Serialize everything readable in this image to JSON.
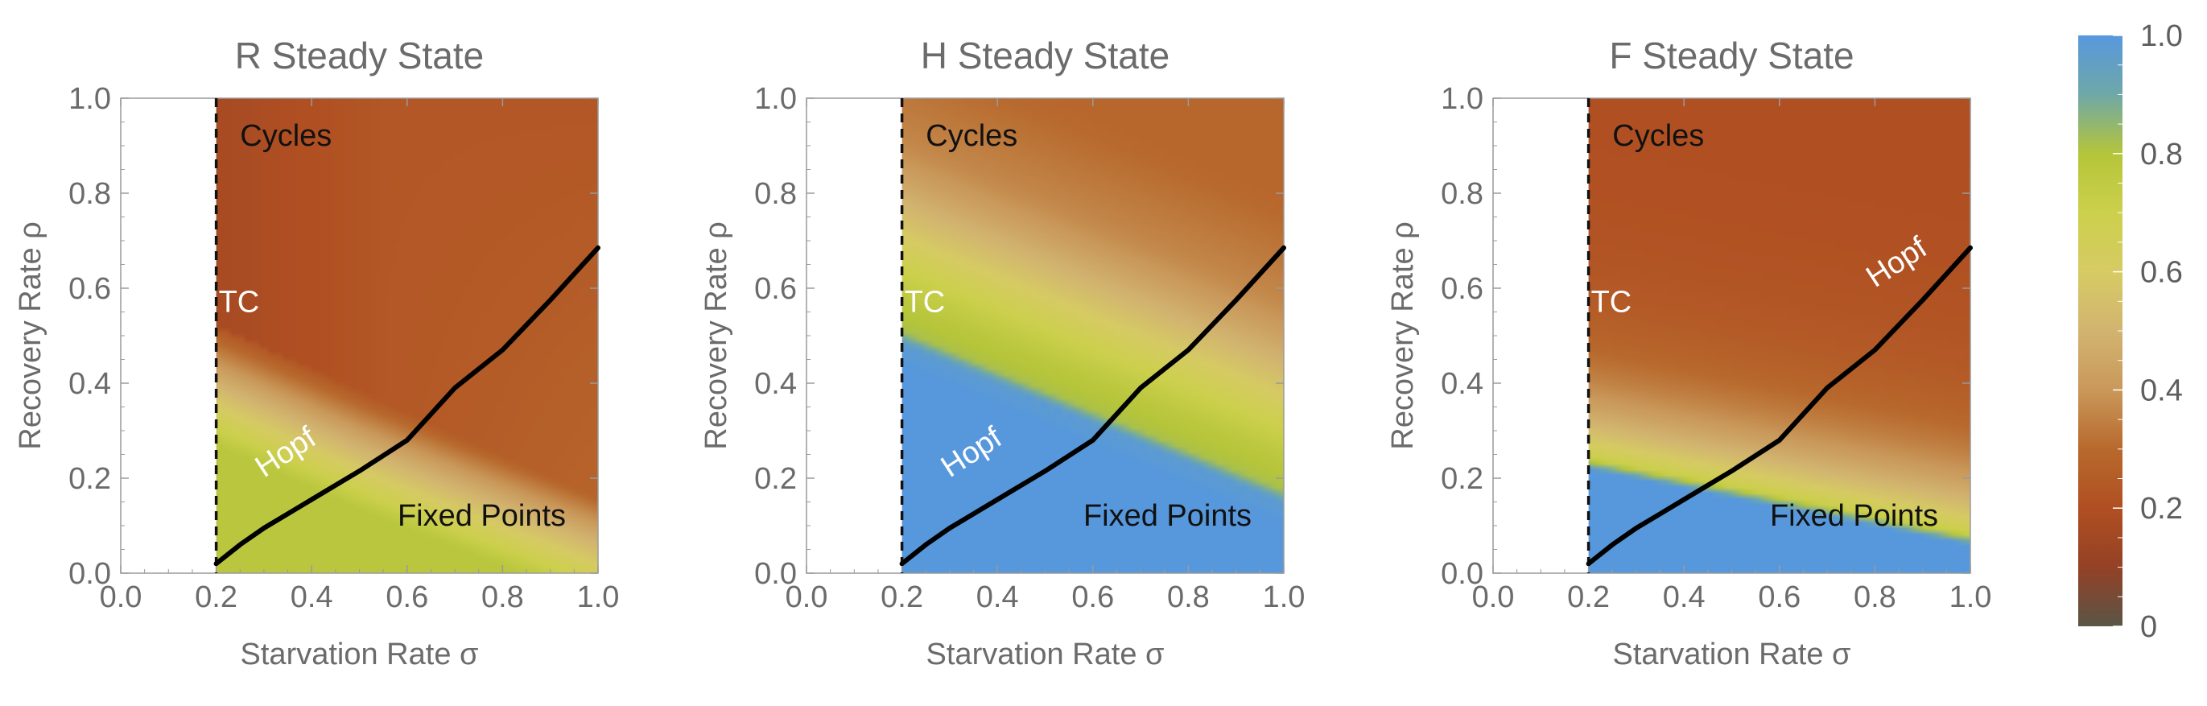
{
  "chart_data": [
    {
      "type": "heatmap",
      "title": "R Steady State",
      "xlabel": "Starvation Rate σ",
      "ylabel": "Recovery Rate ρ",
      "xlim": [
        0.0,
        1.0
      ],
      "ylim": [
        0.0,
        1.0
      ],
      "xticks": [
        "0.0",
        "0.2",
        "0.4",
        "0.6",
        "0.8",
        "1.0"
      ],
      "yticks": [
        "0.0",
        "0.2",
        "0.4",
        "0.6",
        "0.8",
        "1.0"
      ],
      "field": "R",
      "excluded_region_sigma_below": 0.2,
      "annotations": [
        {
          "text": "Cycles",
          "x": 0.25,
          "y": 0.9
        },
        {
          "text": "Fixed Points",
          "x": 0.58,
          "y": 0.1
        },
        {
          "text": "TC",
          "x": 0.205,
          "y": 0.55
        },
        {
          "text": "Hopf",
          "x": 0.3,
          "y": 0.2
        }
      ]
    },
    {
      "type": "heatmap",
      "title": "H Steady State",
      "xlabel": "Starvation Rate σ",
      "ylabel": "Recovery Rate ρ",
      "xlim": [
        0.0,
        1.0
      ],
      "ylim": [
        0.0,
        1.0
      ],
      "xticks": [
        "0.0",
        "0.2",
        "0.4",
        "0.6",
        "0.8",
        "1.0"
      ],
      "yticks": [
        "0.0",
        "0.2",
        "0.4",
        "0.6",
        "0.8",
        "1.0"
      ],
      "field": "H",
      "excluded_region_sigma_below": 0.2,
      "annotations": [
        {
          "text": "Cycles",
          "x": 0.25,
          "y": 0.9
        },
        {
          "text": "Fixed Points",
          "x": 0.58,
          "y": 0.1
        },
        {
          "text": "TC",
          "x": 0.205,
          "y": 0.55
        },
        {
          "text": "Hopf",
          "x": 0.3,
          "y": 0.2
        }
      ]
    },
    {
      "type": "heatmap",
      "title": "F Steady State",
      "xlabel": "Starvation Rate σ",
      "ylabel": "Recovery Rate ρ",
      "xlim": [
        0.0,
        1.0
      ],
      "ylim": [
        0.0,
        1.0
      ],
      "xticks": [
        "0.0",
        "0.2",
        "0.4",
        "0.6",
        "0.8",
        "1.0"
      ],
      "yticks": [
        "0.0",
        "0.2",
        "0.4",
        "0.6",
        "0.8",
        "1.0"
      ],
      "field": "F",
      "excluded_region_sigma_below": 0.2,
      "annotations": [
        {
          "text": "Cycles",
          "x": 0.25,
          "y": 0.9
        },
        {
          "text": "Fixed Points",
          "x": 0.58,
          "y": 0.1
        },
        {
          "text": "TC",
          "x": 0.205,
          "y": 0.55
        },
        {
          "text": "Hopf",
          "x": 0.8,
          "y": 0.6
        }
      ]
    }
  ],
  "curves": {
    "transcritical_sigma": 0.2,
    "hopf": {
      "sigma": [
        0.2,
        0.25,
        0.3,
        0.35,
        0.4,
        0.5,
        0.6,
        0.7,
        0.8,
        0.9,
        1.0
      ],
      "rho": [
        0.02,
        0.06,
        0.095,
        0.125,
        0.155,
        0.215,
        0.28,
        0.39,
        0.47,
        0.575,
        0.685
      ]
    }
  },
  "colorbar": {
    "min": 0,
    "max": 1.0,
    "tick_labels": [
      "0",
      "0.2",
      "0.4",
      "0.6",
      "0.8",
      "1.0"
    ],
    "tick_values": [
      0,
      0.2,
      0.4,
      0.6,
      0.8,
      1.0
    ],
    "stops": [
      {
        "v": 0.0,
        "color": "#5a5546"
      },
      {
        "v": 0.1,
        "color": "#944126"
      },
      {
        "v": 0.2,
        "color": "#b04f22"
      },
      {
        "v": 0.3,
        "color": "#b8692d"
      },
      {
        "v": 0.4,
        "color": "#c9985a"
      },
      {
        "v": 0.5,
        "color": "#d2b470"
      },
      {
        "v": 0.6,
        "color": "#d6cb64"
      },
      {
        "v": 0.7,
        "color": "#ccd04c"
      },
      {
        "v": 0.8,
        "color": "#b5c53a"
      },
      {
        "v": 0.9,
        "color": "#6fa8a8"
      },
      {
        "v": 1.0,
        "color": "#5798dd"
      }
    ]
  }
}
